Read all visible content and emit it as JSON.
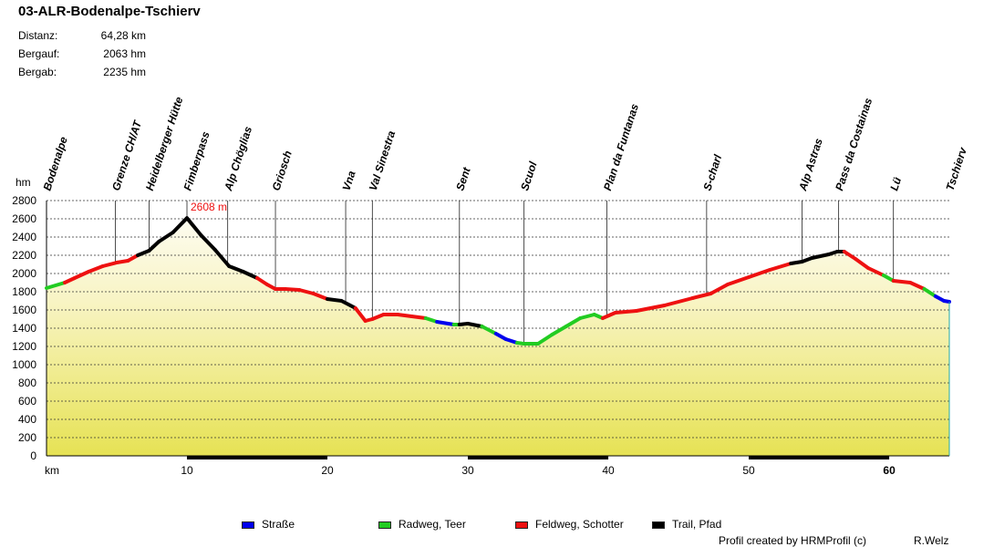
{
  "header": {
    "title": "03-ALR-Bodenalpe-Tschierv",
    "stats": [
      {
        "label": "Distanz:",
        "value": "64,28 km"
      },
      {
        "label": "Bergauf:",
        "value": "2063 hm"
      },
      {
        "label": "Bergab:",
        "value": "2235 hm"
      }
    ]
  },
  "chart_data": {
    "type": "area",
    "ylabel": "hm",
    "xlabel": "km",
    "xlim": [
      0,
      64.28
    ],
    "ylim": [
      0,
      2800
    ],
    "y_ticks": [
      0,
      200,
      400,
      600,
      800,
      1000,
      1200,
      1400,
      1600,
      1800,
      2000,
      2200,
      2400,
      2600,
      2800
    ],
    "x_ticks": [
      10,
      20,
      30,
      40,
      50,
      60
    ],
    "grid": true,
    "max_annotation": {
      "x": 10,
      "y": 2608,
      "label": "2608 m"
    },
    "waypoints": [
      {
        "name": "Bodenalpe",
        "km": 0
      },
      {
        "name": "Grenze CH/AT",
        "km": 4.9
      },
      {
        "name": "Heidelberger Hütte",
        "km": 7.3
      },
      {
        "name": "Fimberpass",
        "km": 10.0
      },
      {
        "name": "Alp Chöglias",
        "km": 12.9
      },
      {
        "name": "Griosch",
        "km": 16.3
      },
      {
        "name": "Vna",
        "km": 21.3
      },
      {
        "name": "Val Sinestra",
        "km": 23.2
      },
      {
        "name": "Sent",
        "km": 29.4
      },
      {
        "name": "Scuol",
        "km": 34.0
      },
      {
        "name": "Plan da Funtanas",
        "km": 39.9
      },
      {
        "name": "S-charl",
        "km": 47.0
      },
      {
        "name": "Alp Astras",
        "km": 53.8
      },
      {
        "name": "Pass da Costainas",
        "km": 56.4
      },
      {
        "name": "Lü",
        "km": 60.3
      },
      {
        "name": "Tschierv",
        "km": 64.28
      }
    ],
    "profile": [
      {
        "km": 0,
        "hm": 1840,
        "t": "radweg"
      },
      {
        "km": 1.3,
        "hm": 1900,
        "t": "radweg"
      },
      {
        "km": 2,
        "hm": 1950,
        "t": "feldweg"
      },
      {
        "km": 3,
        "hm": 2020,
        "t": "feldweg"
      },
      {
        "km": 4,
        "hm": 2080,
        "t": "feldweg"
      },
      {
        "km": 5,
        "hm": 2120,
        "t": "feldweg"
      },
      {
        "km": 5.8,
        "hm": 2140,
        "t": "feldweg"
      },
      {
        "km": 6.5,
        "hm": 2200,
        "t": "feldweg"
      },
      {
        "km": 7.3,
        "hm": 2250,
        "t": "trail"
      },
      {
        "km": 8,
        "hm": 2350,
        "t": "trail"
      },
      {
        "km": 9,
        "hm": 2450,
        "t": "trail"
      },
      {
        "km": 10,
        "hm": 2608,
        "t": "trail"
      },
      {
        "km": 11,
        "hm": 2420,
        "t": "trail"
      },
      {
        "km": 12,
        "hm": 2260,
        "t": "trail"
      },
      {
        "km": 13,
        "hm": 2080,
        "t": "trail"
      },
      {
        "km": 14,
        "hm": 2020,
        "t": "trail"
      },
      {
        "km": 15,
        "hm": 1950,
        "t": "trail"
      },
      {
        "km": 15.7,
        "hm": 1880,
        "t": "feldweg"
      },
      {
        "km": 16.3,
        "hm": 1830,
        "t": "feldweg"
      },
      {
        "km": 17,
        "hm": 1830,
        "t": "feldweg"
      },
      {
        "km": 18,
        "hm": 1820,
        "t": "feldweg"
      },
      {
        "km": 19,
        "hm": 1780,
        "t": "feldweg"
      },
      {
        "km": 20,
        "hm": 1720,
        "t": "feldweg"
      },
      {
        "km": 21,
        "hm": 1700,
        "t": "trail"
      },
      {
        "km": 22,
        "hm": 1620,
        "t": "trail"
      },
      {
        "km": 22.7,
        "hm": 1480,
        "t": "feldweg"
      },
      {
        "km": 23.2,
        "hm": 1500,
        "t": "feldweg"
      },
      {
        "km": 24,
        "hm": 1550,
        "t": "feldweg"
      },
      {
        "km": 25,
        "hm": 1550,
        "t": "feldweg"
      },
      {
        "km": 26,
        "hm": 1530,
        "t": "feldweg"
      },
      {
        "km": 27,
        "hm": 1510,
        "t": "feldweg"
      },
      {
        "km": 27.8,
        "hm": 1470,
        "t": "radweg"
      },
      {
        "km": 29,
        "hm": 1440,
        "t": "strasse"
      },
      {
        "km": 29.4,
        "hm": 1440,
        "t": "radweg"
      },
      {
        "km": 30,
        "hm": 1450,
        "t": "trail"
      },
      {
        "km": 31,
        "hm": 1420,
        "t": "trail"
      },
      {
        "km": 32,
        "hm": 1340,
        "t": "radweg"
      },
      {
        "km": 32.7,
        "hm": 1280,
        "t": "strasse"
      },
      {
        "km": 33.5,
        "hm": 1240,
        "t": "strasse"
      },
      {
        "km": 34,
        "hm": 1230,
        "t": "radweg"
      },
      {
        "km": 35,
        "hm": 1230,
        "t": "radweg"
      },
      {
        "km": 36,
        "hm": 1330,
        "t": "radweg"
      },
      {
        "km": 37,
        "hm": 1420,
        "t": "radweg"
      },
      {
        "km": 38,
        "hm": 1510,
        "t": "radweg"
      },
      {
        "km": 39,
        "hm": 1550,
        "t": "radweg"
      },
      {
        "km": 39.6,
        "hm": 1510,
        "t": "radweg"
      },
      {
        "km": 40.5,
        "hm": 1570,
        "t": "feldweg"
      },
      {
        "km": 42,
        "hm": 1590,
        "t": "feldweg"
      },
      {
        "km": 44,
        "hm": 1650,
        "t": "feldweg"
      },
      {
        "km": 46,
        "hm": 1730,
        "t": "feldweg"
      },
      {
        "km": 47.3,
        "hm": 1780,
        "t": "feldweg"
      },
      {
        "km": 48.5,
        "hm": 1880,
        "t": "feldweg"
      },
      {
        "km": 50,
        "hm": 1960,
        "t": "feldweg"
      },
      {
        "km": 51.5,
        "hm": 2040,
        "t": "feldweg"
      },
      {
        "km": 53,
        "hm": 2110,
        "t": "feldweg"
      },
      {
        "km": 53.8,
        "hm": 2130,
        "t": "trail"
      },
      {
        "km": 54.5,
        "hm": 2170,
        "t": "trail"
      },
      {
        "km": 55.7,
        "hm": 2210,
        "t": "trail"
      },
      {
        "km": 56.3,
        "hm": 2240,
        "t": "trail"
      },
      {
        "km": 56.8,
        "hm": 2240,
        "t": "trail"
      },
      {
        "km": 57.6,
        "hm": 2160,
        "t": "feldweg"
      },
      {
        "km": 58.5,
        "hm": 2060,
        "t": "feldweg"
      },
      {
        "km": 59.6,
        "hm": 1980,
        "t": "feldweg"
      },
      {
        "km": 60.3,
        "hm": 1920,
        "t": "radweg"
      },
      {
        "km": 61.5,
        "hm": 1900,
        "t": "feldweg"
      },
      {
        "km": 62.5,
        "hm": 1830,
        "t": "feldweg"
      },
      {
        "km": 63.3,
        "hm": 1750,
        "t": "radweg"
      },
      {
        "km": 63.9,
        "hm": 1700,
        "t": "strasse"
      },
      {
        "km": 64.28,
        "hm": 1690,
        "t": "strasse"
      }
    ],
    "legend": [
      {
        "key": "strasse",
        "label": "Straße",
        "color": "#0000ee"
      },
      {
        "key": "radweg",
        "label": "Radweg, Teer",
        "color": "#22cc22"
      },
      {
        "key": "feldweg",
        "label": "Feldweg, Schotter",
        "color": "#ee1111"
      },
      {
        "key": "trail",
        "label": "Trail, Pfad",
        "color": "#000000"
      }
    ]
  },
  "footer": {
    "credit": "Profil created by HRMProfil (c)",
    "author": "R.Welz"
  }
}
